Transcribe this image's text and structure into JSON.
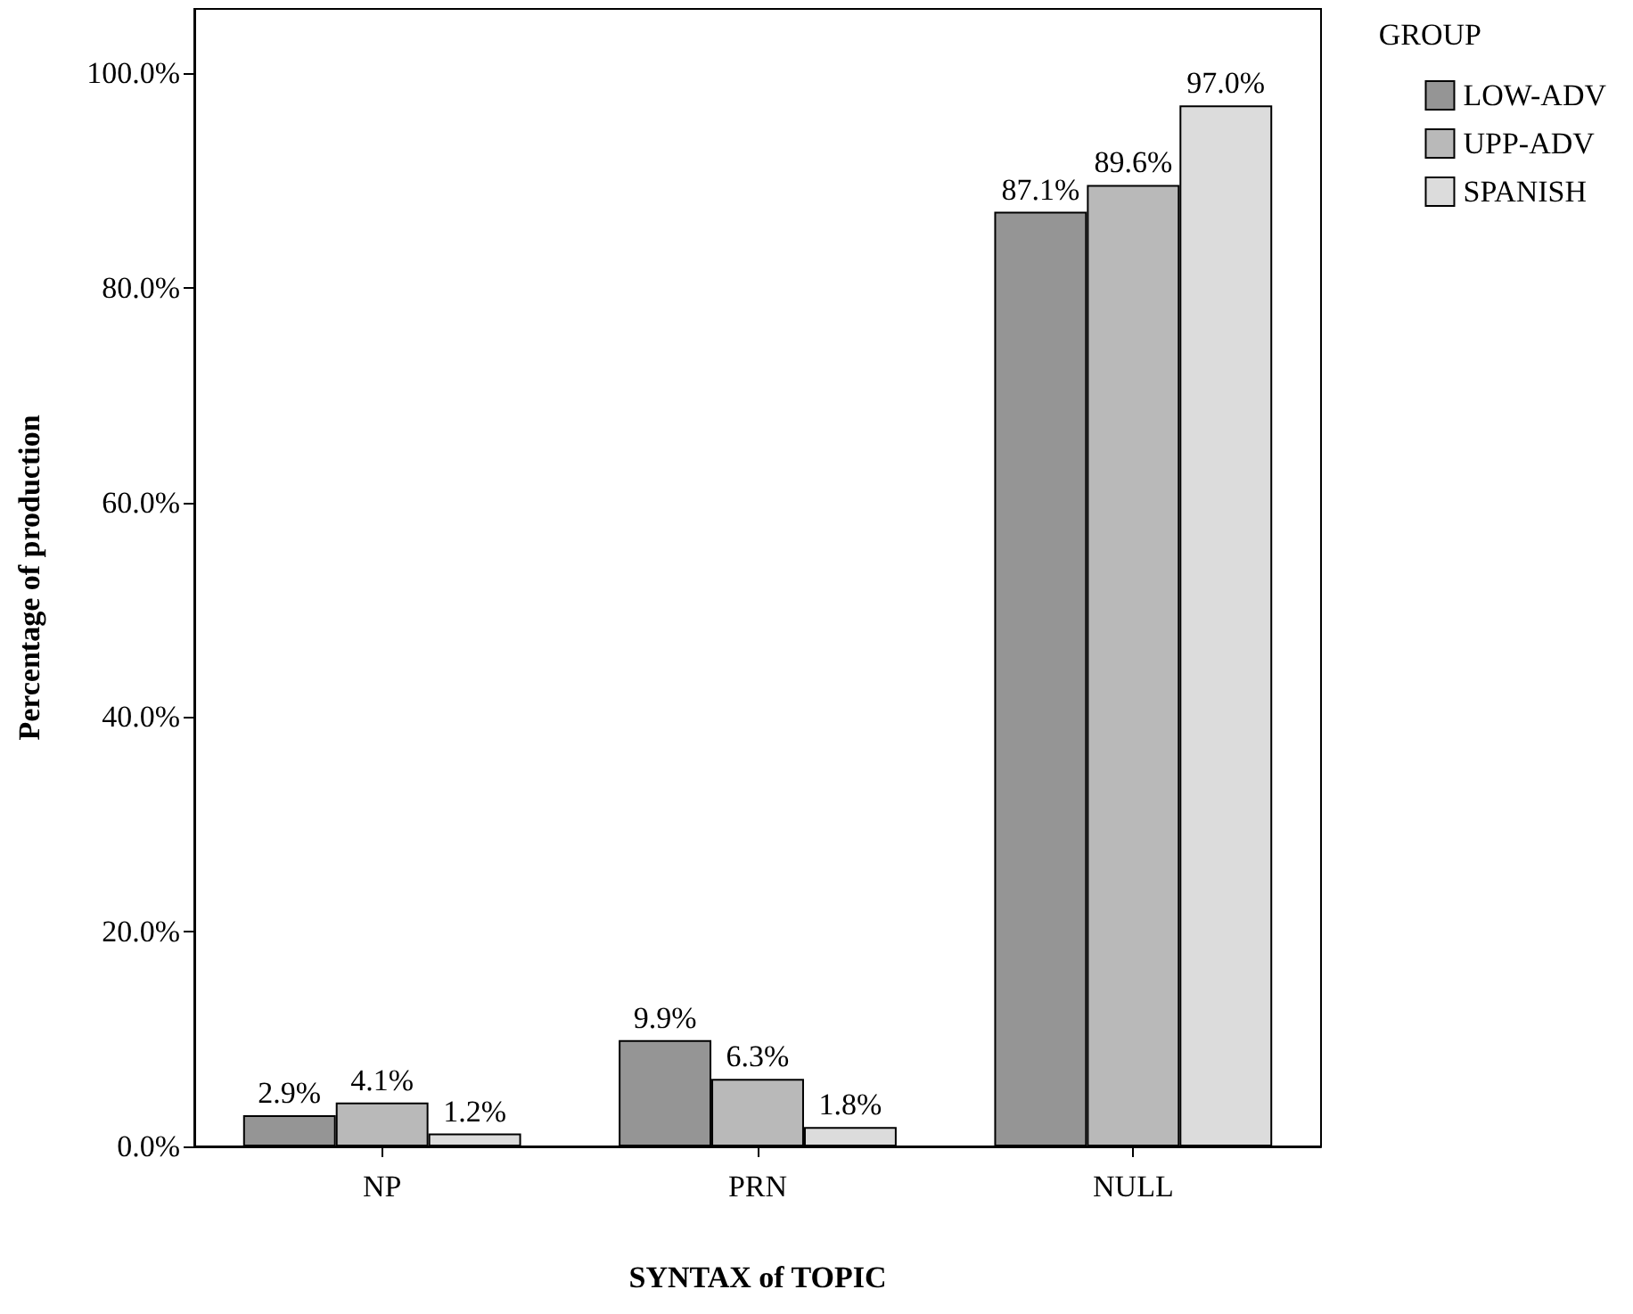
{
  "chart_data": {
    "type": "bar",
    "xlabel": "SYNTAX of TOPIC",
    "ylabel": "Percentage of production",
    "legend_title": "GROUP",
    "categories": [
      "NP",
      "PRN",
      "NULL"
    ],
    "series": [
      {
        "name": "LOW-ADV",
        "color": "#959595",
        "values": [
          2.9,
          9.9,
          87.1
        ],
        "value_labels": [
          "2.9%",
          "9.9%",
          "87.1%"
        ]
      },
      {
        "name": "UPP-ADV",
        "color": "#b9b9b9",
        "values": [
          4.1,
          6.3,
          89.6
        ],
        "value_labels": [
          "4.1%",
          "6.3%",
          "89.6%"
        ]
      },
      {
        "name": "SPANISH",
        "color": "#dcdcdc",
        "values": [
          1.2,
          1.8,
          97.0
        ],
        "value_labels": [
          "1.2%",
          "1.8%",
          "97.0%"
        ]
      }
    ],
    "ylim": [
      0,
      106
    ],
    "yticks": [
      {
        "value": 0,
        "label": "0.0%"
      },
      {
        "value": 20,
        "label": "20.0%"
      },
      {
        "value": 40,
        "label": "40.0%"
      },
      {
        "value": 60,
        "label": "60.0%"
      },
      {
        "value": 80,
        "label": "80.0%"
      },
      {
        "value": 100,
        "label": "100.0%"
      }
    ],
    "grid": false,
    "legend": "top right"
  }
}
